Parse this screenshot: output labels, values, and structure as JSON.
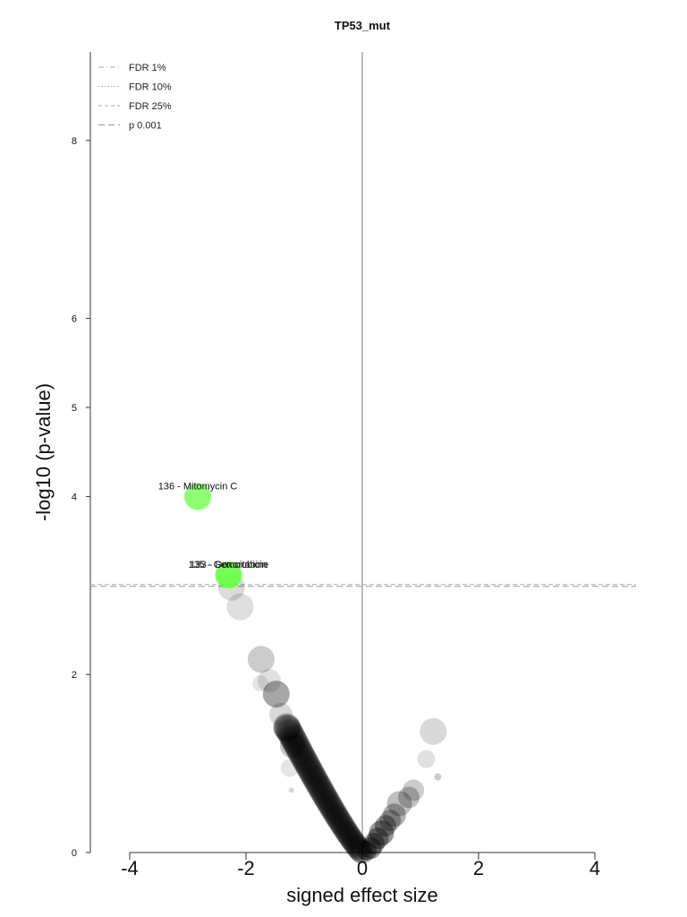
{
  "chart_data": {
    "type": "scatter",
    "title": "TP53_mut",
    "xlabel": "signed effect size",
    "ylabel": "-log10 (p-value)",
    "xlim": [
      -4.7,
      4.7
    ],
    "ylim": [
      0,
      9
    ],
    "x_ticks": [
      "-4",
      "-2",
      "0",
      "2",
      "4"
    ],
    "y_ticks": [
      "0",
      "2",
      "4",
      "5",
      "6",
      "8"
    ],
    "threshold_lines": [
      {
        "label": "FDR 1%",
        "style": "dash-dot",
        "color": "#aaaaaa"
      },
      {
        "label": "FDR 10%",
        "style": "dotted",
        "color": "#aaaaaa"
      },
      {
        "label": "FDR 25%",
        "style": "dashed",
        "color": "#aaaaaa"
      },
      {
        "label": "p 0.001",
        "style": "long-dash",
        "color": "#999999",
        "y": 3.0
      }
    ],
    "legend_position": "top-left",
    "zero_line": true,
    "colors": {
      "significant": "#66ff44",
      "background_point": "#000000",
      "axis": "#333333",
      "zero_line": "#bbbbbb"
    },
    "significant_points": [
      {
        "label": "136 - Mitomycin C",
        "x": -2.83,
        "y": 4.0,
        "size": 15,
        "opacity": 0.75
      },
      {
        "label": "135 - Gemcitabine",
        "x": -2.3,
        "y": 3.12,
        "size": 15,
        "opacity": 0.85
      },
      {
        "label": "133 - Doxorubicin",
        "x": -2.3,
        "y": 3.12,
        "size": 13,
        "opacity": 0.5
      }
    ],
    "points": [
      {
        "x": -2.25,
        "y": 2.98,
        "size": 15,
        "opacity": 0.14
      },
      {
        "x": -2.1,
        "y": 2.76,
        "size": 15,
        "opacity": 0.13
      },
      {
        "x": -1.74,
        "y": 2.17,
        "size": 15,
        "opacity": 0.2
      },
      {
        "x": -1.6,
        "y": 1.93,
        "size": 13,
        "opacity": 0.12
      },
      {
        "x": -1.75,
        "y": 1.9,
        "size": 9,
        "opacity": 0.1
      },
      {
        "x": -1.48,
        "y": 1.78,
        "size": 15,
        "opacity": 0.35
      },
      {
        "x": -1.4,
        "y": 1.55,
        "size": 13,
        "opacity": 0.15
      },
      {
        "x": -1.3,
        "y": 1.4,
        "size": 15,
        "opacity": 0.3
      },
      {
        "x": -1.2,
        "y": 1.2,
        "size": 14,
        "opacity": 0.22
      },
      {
        "x": -1.25,
        "y": 0.95,
        "size": 10,
        "opacity": 0.1
      },
      {
        "x": -1.22,
        "y": 0.7,
        "size": 3,
        "opacity": 0.15
      },
      {
        "x": 1.22,
        "y": 1.36,
        "size": 15,
        "opacity": 0.15
      },
      {
        "x": 1.1,
        "y": 1.05,
        "size": 10,
        "opacity": 0.12
      },
      {
        "x": 1.3,
        "y": 0.85,
        "size": 4,
        "opacity": 0.2
      },
      {
        "x": 0.88,
        "y": 0.7,
        "size": 12,
        "opacity": 0.2
      },
      {
        "x": 0.8,
        "y": 0.62,
        "size": 12,
        "opacity": 0.25
      },
      {
        "x": 0.64,
        "y": 0.55,
        "size": 14,
        "opacity": 0.25
      },
      {
        "x": 0.55,
        "y": 0.42,
        "size": 13,
        "opacity": 0.3
      },
      {
        "x": 0.48,
        "y": 0.36,
        "size": 12,
        "opacity": 0.3
      },
      {
        "x": 0.4,
        "y": 0.3,
        "size": 12,
        "opacity": 0.35
      },
      {
        "x": 0.33,
        "y": 0.22,
        "size": 14,
        "opacity": 0.4
      },
      {
        "x": 0.27,
        "y": 0.16,
        "size": 12,
        "opacity": 0.4
      },
      {
        "x": 0.2,
        "y": 0.1,
        "size": 12,
        "opacity": 0.4
      },
      {
        "x": 0.15,
        "y": 0.05,
        "size": 12,
        "opacity": 0.4
      },
      {
        "x": 0.08,
        "y": 0.02,
        "size": 11,
        "opacity": 0.4
      }
    ],
    "curve": {
      "x_start": -1.3,
      "x_end": 0.0,
      "count": 90,
      "size_min": 11,
      "size_max": 15,
      "opacity": 0.16
    }
  }
}
